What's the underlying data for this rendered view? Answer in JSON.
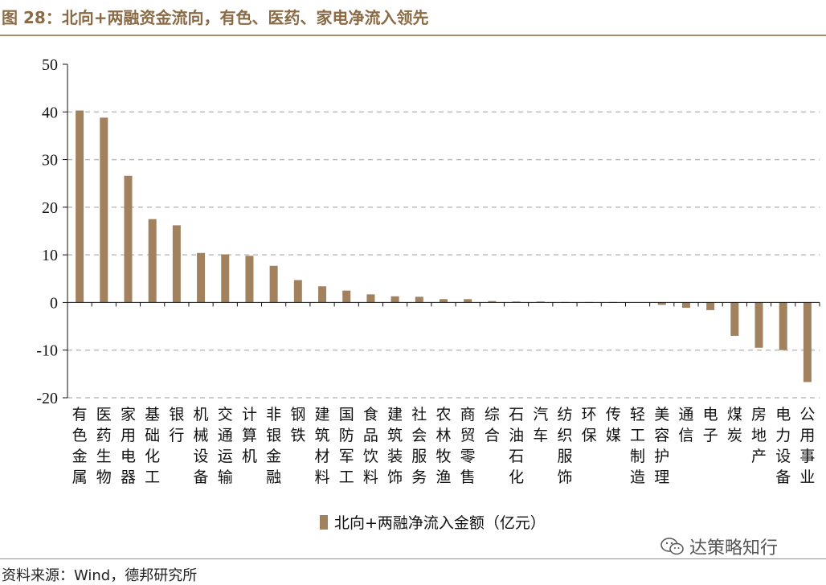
{
  "header": {
    "title": "图 28：北向+两融资金流向，有色、医药、家电净流入领先"
  },
  "footer": {
    "source": "资料来源：Wind，德邦研究所",
    "watermark": "达策略知行",
    "watermark_icon": "wechat-icon"
  },
  "colors": {
    "bar": "#A2825E",
    "title": "#8B6B46",
    "rule": "#A88B6A",
    "grid": "#BDBDBD"
  },
  "chart_data": {
    "type": "bar",
    "categories": [
      "有色金属",
      "医药生物",
      "家用电器",
      "基础化工",
      "银行",
      "机械设备",
      "交通运输",
      "计算机",
      "非银金融",
      "钢铁",
      "建筑材料",
      "国防军工",
      "食品饮料",
      "建筑装饰",
      "社会服务",
      "农林牧渔",
      "商贸零售",
      "综合",
      "石油石化",
      "汽车",
      "纺织服饰",
      "环保",
      "传媒",
      "轻工制造",
      "美容护理",
      "通信",
      "电子",
      "煤炭",
      "房地产",
      "电力设备",
      "公用事业"
    ],
    "series": [
      {
        "name": "北向+两融净流入金额（亿元）",
        "values": [
          40.3,
          38.8,
          26.6,
          17.5,
          16.2,
          10.4,
          10.1,
          9.8,
          7.7,
          4.7,
          3.4,
          2.5,
          1.7,
          1.3,
          1.2,
          0.7,
          0.7,
          0.3,
          0.2,
          0.2,
          0.1,
          0.1,
          0.1,
          0.0,
          -0.5,
          -1.1,
          -1.6,
          -7.0,
          -9.5,
          -10.0,
          -16.7
        ]
      }
    ],
    "yticks": [
      "50",
      "40",
      "30",
      "20",
      "10",
      "0",
      "-10",
      "-20"
    ],
    "ylim": [
      -20,
      50
    ],
    "grid": true,
    "legend_position": "bottom-center"
  }
}
